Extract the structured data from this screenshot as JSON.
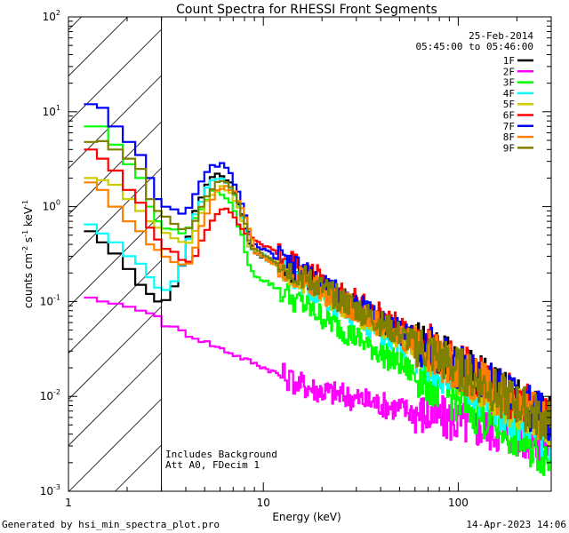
{
  "chart_data": {
    "type": "line",
    "title": "Count Spectra for RHESSI Front Segments",
    "xlabel": "Energy (keV)",
    "ylabel": {
      "base": "counts cm",
      "e1": "-2",
      "mid1": " s",
      "e2": "-1",
      "mid2": " keV",
      "e3": "-1"
    },
    "xscale": "log",
    "yscale": "log",
    "xlim": [
      1,
      300
    ],
    "ylim": [
      0.001,
      100
    ],
    "x_ticks": [
      {
        "value": 1,
        "label": "1"
      },
      {
        "value": 10,
        "label": "10"
      },
      {
        "value": 100,
        "label": "100"
      }
    ],
    "y_ticks": [
      {
        "value": 0.001,
        "base": "10",
        "exp": "-3"
      },
      {
        "value": 0.01,
        "base": "10",
        "exp": "-2"
      },
      {
        "value": 0.1,
        "base": "10",
        "exp": "-1"
      },
      {
        "value": 1,
        "base": "10",
        "exp": "0"
      },
      {
        "value": 10,
        "base": "10",
        "exp": "1"
      },
      {
        "value": 100,
        "base": "10",
        "exp": "2"
      }
    ],
    "date": "25-Feb-2014",
    "time_range": "05:45:00 to 05:46:00",
    "excluded_region_max_kev": 3,
    "annotations": [
      "Includes Background",
      "Att A0, FDecim 1"
    ],
    "series": [
      {
        "name": "1F",
        "color": "#000000",
        "low": [
          0.55,
          0.42,
          0.32,
          0.22,
          0.15,
          0.12,
          0.1
        ],
        "peak": 2.2,
        "peak_e": 5.9,
        "tail10": 0.3,
        "tail300": 0.006
      },
      {
        "name": "2F",
        "color": "#ff00ff",
        "low": [
          0.11,
          0.1,
          0.095,
          0.088,
          0.08,
          0.075,
          0.07
        ],
        "peak": 0.022,
        "peak_e": 7.0,
        "tail10": 0.016,
        "tail300": 0.0032
      },
      {
        "name": "3F",
        "color": "#00ff00",
        "low": [
          7.0,
          7.0,
          4.5,
          2.8,
          2.0,
          1.0,
          0.7
        ],
        "peak": 1.45,
        "peak_e": 5.8,
        "tail10": 0.17,
        "tail300": 0.0022
      },
      {
        "name": "4F",
        "color": "#00ffff",
        "low": [
          0.65,
          0.52,
          0.42,
          0.3,
          0.25,
          0.18,
          0.14
        ],
        "peak": 2.0,
        "peak_e": 5.9,
        "tail10": 0.3,
        "tail300": 0.0035
      },
      {
        "name": "5F",
        "color": "#cccc00",
        "low": [
          2.0,
          1.9,
          1.7,
          1.2,
          0.9,
          0.7,
          0.6
        ],
        "peak": 1.55,
        "peak_e": 6.1,
        "tail10": 0.3,
        "tail300": 0.0045
      },
      {
        "name": "6F",
        "color": "#ff0000",
        "low": [
          4.0,
          3.2,
          2.4,
          1.5,
          1.1,
          0.6,
          0.45
        ],
        "peak": 0.95,
        "peak_e": 6.3,
        "tail10": 0.4,
        "tail300": 0.0055
      },
      {
        "name": "7F",
        "color": "#0000ff",
        "low": [
          12.0,
          11.0,
          7.0,
          4.8,
          3.5,
          2.0,
          1.2
        ],
        "peak": 2.8,
        "peak_e": 5.9,
        "tail10": 0.35,
        "tail300": 0.0055
      },
      {
        "name": "8F",
        "color": "#ff8000",
        "low": [
          1.8,
          1.5,
          1.0,
          0.7,
          0.55,
          0.4,
          0.35
        ],
        "peak": 1.6,
        "peak_e": 6.4,
        "tail10": 0.3,
        "tail300": 0.005
      },
      {
        "name": "9F",
        "color": "#808000",
        "low": [
          4.8,
          4.9,
          4.0,
          3.2,
          2.5,
          1.2,
          0.9
        ],
        "peak": 1.8,
        "peak_e": 6.1,
        "tail10": 0.32,
        "tail300": 0.005
      }
    ]
  },
  "footer": {
    "generated": "Generated by hsi_min_spectra_plot.pro",
    "timestamp": "14-Apr-2023 14:06"
  }
}
